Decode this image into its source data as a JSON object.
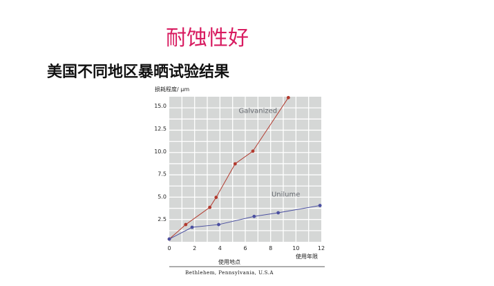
{
  "title": "耐蚀性好",
  "subtitle": "美国不同地区暴晒试验结果",
  "chart_data": {
    "type": "line",
    "ylabel": "损耗程度/ μm",
    "xlabel": "使用年限",
    "x_ticks": [
      "0",
      "2",
      "4",
      "6",
      "8",
      "10",
      "12"
    ],
    "y_ticks": [
      "2.5",
      "5.0",
      "7.5",
      "10.0",
      "12.5",
      "15.0"
    ],
    "xlim": [
      0,
      12
    ],
    "ylim": [
      0,
      16
    ],
    "grid": true,
    "series": [
      {
        "name": "Galvanized",
        "color": "#b23a2e",
        "points": [
          [
            0,
            0.3
          ],
          [
            1.3,
            1.9
          ],
          [
            3.2,
            3.8
          ],
          [
            3.7,
            4.9
          ],
          [
            5.2,
            8.6
          ],
          [
            6.6,
            10.0
          ],
          [
            9.4,
            15.9
          ]
        ]
      },
      {
        "name": "Unilume",
        "color": "#4a4fa0",
        "points": [
          [
            0,
            0.3
          ],
          [
            1.8,
            1.6
          ],
          [
            3.9,
            1.9
          ],
          [
            6.7,
            2.8
          ],
          [
            8.6,
            3.2
          ],
          [
            11.9,
            4.0
          ]
        ]
      }
    ],
    "location_title": "使用地点",
    "location": "Bethlehem, Pennsylvania, U.S.A"
  },
  "colors": {
    "plot_bg": "#d5d7d6",
    "grid": "#ffffff",
    "title": "#d81b60"
  }
}
